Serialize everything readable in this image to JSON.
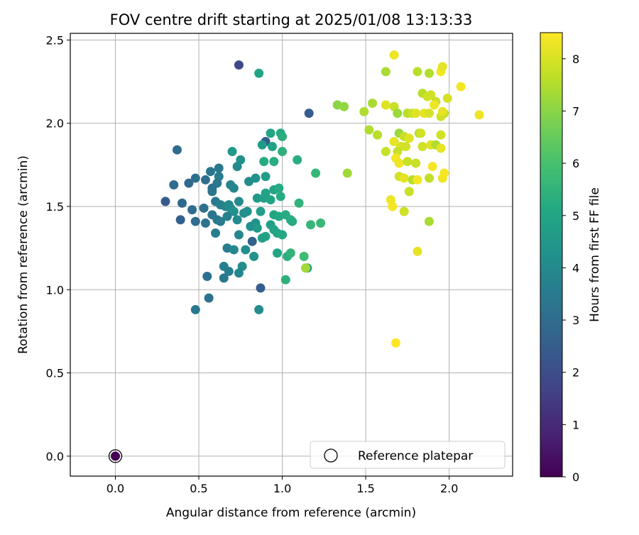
{
  "chart_data": {
    "type": "scatter",
    "title": "FOV centre drift starting at 2025/01/08 13:13:33",
    "xlabel": "Angular distance from reference (arcmin)",
    "ylabel": "Rotation from reference (arcmin)",
    "xlim": [
      -0.27,
      2.38
    ],
    "ylim": [
      -0.12,
      2.54
    ],
    "x_ticks": [
      0.0,
      0.5,
      1.0,
      1.5,
      2.0
    ],
    "x_tick_labels": [
      "0.0",
      "0.5",
      "1.0",
      "1.5",
      "2.0"
    ],
    "y_ticks": [
      0.0,
      0.5,
      1.0,
      1.5,
      2.0,
      2.5
    ],
    "y_tick_labels": [
      "0.0",
      "0.5",
      "1.0",
      "1.5",
      "2.0",
      "2.5"
    ],
    "grid": true,
    "legend": {
      "position": "lower-right",
      "entries": [
        "Reference platepar"
      ]
    },
    "colorbar": {
      "label": "Hours from first FF file",
      "min": 0,
      "max": 8.5,
      "colormap": "viridis",
      "ticks": [
        0,
        1,
        2,
        3,
        4,
        5,
        6,
        7,
        8
      ],
      "tick_labels": [
        "0",
        "1",
        "2",
        "3",
        "4",
        "5",
        "6",
        "7",
        "8"
      ]
    },
    "reference_point": {
      "name": "Reference platepar",
      "x": 0.0,
      "y": 0.0,
      "hours": 0.0
    },
    "series": [
      {
        "points": [
          [
            0.74,
            2.35,
            1.9
          ],
          [
            0.86,
            2.3,
            5.0
          ],
          [
            1.16,
            2.06,
            2.5
          ],
          [
            0.9,
            1.89,
            2.4
          ],
          [
            0.37,
            1.84,
            3.0
          ],
          [
            0.93,
            1.94,
            5.0
          ],
          [
            0.99,
            1.94,
            5.2
          ],
          [
            0.88,
            1.87,
            4.6
          ],
          [
            0.94,
            1.86,
            4.9
          ],
          [
            1.0,
            1.92,
            5.3
          ],
          [
            0.7,
            1.83,
            4.5
          ],
          [
            0.75,
            1.78,
            4.2
          ],
          [
            0.73,
            1.74,
            4.0
          ],
          [
            0.89,
            1.77,
            5.2
          ],
          [
            0.95,
            1.77,
            5.3
          ],
          [
            1.0,
            1.83,
            5.4
          ],
          [
            1.09,
            1.78,
            5.3
          ],
          [
            1.2,
            1.7,
            5.6
          ],
          [
            0.35,
            1.63,
            3.0
          ],
          [
            0.44,
            1.64,
            2.9
          ],
          [
            0.48,
            1.67,
            3.1
          ],
          [
            0.57,
            1.71,
            3.3
          ],
          [
            0.62,
            1.73,
            3.4
          ],
          [
            0.62,
            1.68,
            3.5
          ],
          [
            0.54,
            1.66,
            3.1
          ],
          [
            0.61,
            1.64,
            3.4
          ],
          [
            0.58,
            1.61,
            3.2
          ],
          [
            0.58,
            1.59,
            3.3
          ],
          [
            0.69,
            1.63,
            3.8
          ],
          [
            0.71,
            1.61,
            3.9
          ],
          [
            0.84,
            1.67,
            4.3
          ],
          [
            0.8,
            1.65,
            4.1
          ],
          [
            0.9,
            1.68,
            4.7
          ],
          [
            0.95,
            1.6,
            5.0
          ],
          [
            0.98,
            1.61,
            5.2
          ],
          [
            0.3,
            1.53,
            2.4
          ],
          [
            0.4,
            1.52,
            2.9
          ],
          [
            0.46,
            1.48,
            3.0
          ],
          [
            0.53,
            1.49,
            3.1
          ],
          [
            0.6,
            1.53,
            3.4
          ],
          [
            0.63,
            1.51,
            3.6
          ],
          [
            0.66,
            1.5,
            3.8
          ],
          [
            0.68,
            1.51,
            4.0
          ],
          [
            0.69,
            1.49,
            4.1
          ],
          [
            0.74,
            1.53,
            4.0
          ],
          [
            0.71,
            1.47,
            4.2
          ],
          [
            0.77,
            1.46,
            4.1
          ],
          [
            0.79,
            1.47,
            4.2
          ],
          [
            0.85,
            1.55,
            4.6
          ],
          [
            0.89,
            1.55,
            4.8
          ],
          [
            0.93,
            1.54,
            5.0
          ],
          [
            0.9,
            1.58,
            4.9
          ],
          [
            0.99,
            1.56,
            5.2
          ],
          [
            0.87,
            1.47,
            4.7
          ],
          [
            0.95,
            1.45,
            5.0
          ],
          [
            0.98,
            1.44,
            5.1
          ],
          [
            1.02,
            1.45,
            5.2
          ],
          [
            1.05,
            1.42,
            5.3
          ],
          [
            1.1,
            1.52,
            5.5
          ],
          [
            1.17,
            1.39,
            5.6
          ],
          [
            1.23,
            1.4,
            5.7
          ],
          [
            0.39,
            1.42,
            2.6
          ],
          [
            0.48,
            1.41,
            3.0
          ],
          [
            0.54,
            1.4,
            3.2
          ],
          [
            0.58,
            1.45,
            3.3
          ],
          [
            0.61,
            1.42,
            3.4
          ],
          [
            0.63,
            1.41,
            3.5
          ],
          [
            0.67,
            1.44,
            3.7
          ],
          [
            0.6,
            1.34,
            3.5
          ],
          [
            0.73,
            1.42,
            4.0
          ],
          [
            0.81,
            1.38,
            4.2
          ],
          [
            0.84,
            1.4,
            4.3
          ],
          [
            0.85,
            1.37,
            4.5
          ],
          [
            0.93,
            1.39,
            4.8
          ],
          [
            0.95,
            1.36,
            4.9
          ],
          [
            0.97,
            1.34,
            5.0
          ],
          [
            1.0,
            1.33,
            5.1
          ],
          [
            1.06,
            1.41,
            5.2
          ],
          [
            0.74,
            1.33,
            3.9
          ],
          [
            0.82,
            1.29,
            2.7
          ],
          [
            0.9,
            1.32,
            4.9
          ],
          [
            0.88,
            1.31,
            4.8
          ],
          [
            0.67,
            1.25,
            3.5
          ],
          [
            0.71,
            1.24,
            3.9
          ],
          [
            0.78,
            1.24,
            4.1
          ],
          [
            0.83,
            1.2,
            4.3
          ],
          [
            0.97,
            1.22,
            5.0
          ],
          [
            1.03,
            1.2,
            5.3
          ],
          [
            1.05,
            1.22,
            5.5
          ],
          [
            1.13,
            1.2,
            5.8
          ],
          [
            0.65,
            1.14,
            3.7
          ],
          [
            0.76,
            1.14,
            4.1
          ],
          [
            0.68,
            1.11,
            3.6
          ],
          [
            0.74,
            1.1,
            3.9
          ],
          [
            0.55,
            1.08,
            3.1
          ],
          [
            0.65,
            1.07,
            3.4
          ],
          [
            1.02,
            1.06,
            5.4
          ],
          [
            1.15,
            1.13,
            4.7
          ],
          [
            1.14,
            1.13,
            7.3
          ],
          [
            0.87,
            1.01,
            2.5
          ],
          [
            0.56,
            0.95,
            3.2
          ],
          [
            0.48,
            0.88,
            3.4
          ],
          [
            0.86,
            0.88,
            4.1
          ],
          [
            1.67,
            2.41,
            8.3
          ],
          [
            1.62,
            2.31,
            7.4
          ],
          [
            1.81,
            2.31,
            7.6
          ],
          [
            1.88,
            2.3,
            7.5
          ],
          [
            1.95,
            2.31,
            8.4
          ],
          [
            1.96,
            2.34,
            8.2
          ],
          [
            1.33,
            2.11,
            7.0
          ],
          [
            1.37,
            2.1,
            7.1
          ],
          [
            1.54,
            2.12,
            7.4
          ],
          [
            1.62,
            2.11,
            8.1
          ],
          [
            1.67,
            2.1,
            7.8
          ],
          [
            1.69,
            2.06,
            7.2
          ],
          [
            1.84,
            2.18,
            7.6
          ],
          [
            1.87,
            2.16,
            7.9
          ],
          [
            1.89,
            2.17,
            7.9
          ],
          [
            1.92,
            2.13,
            7.8
          ],
          [
            1.99,
            2.15,
            8.0
          ],
          [
            2.07,
            2.22,
            8.4
          ],
          [
            1.49,
            2.07,
            7.5
          ],
          [
            1.75,
            2.06,
            7.6
          ],
          [
            1.78,
            2.06,
            7.8
          ],
          [
            1.8,
            2.06,
            8.1
          ],
          [
            1.85,
            2.06,
            8.2
          ],
          [
            1.88,
            2.06,
            8.0
          ],
          [
            1.91,
            2.11,
            8.3
          ],
          [
            1.95,
            2.04,
            7.9
          ],
          [
            1.97,
            2.06,
            7.7
          ],
          [
            1.96,
            2.07,
            8.2
          ],
          [
            2.18,
            2.05,
            8.3
          ],
          [
            1.52,
            1.96,
            7.5
          ],
          [
            1.57,
            1.93,
            7.6
          ],
          [
            1.7,
            1.94,
            7.2
          ],
          [
            1.73,
            1.92,
            7.8
          ],
          [
            1.76,
            1.91,
            8.1
          ],
          [
            1.82,
            1.94,
            7.5
          ],
          [
            1.83,
            1.94,
            7.9
          ],
          [
            1.95,
            1.93,
            7.9
          ],
          [
            1.62,
            1.83,
            7.8
          ],
          [
            1.67,
            1.89,
            8.2
          ],
          [
            1.71,
            1.86,
            8.0
          ],
          [
            1.74,
            1.86,
            7.9
          ],
          [
            1.69,
            1.83,
            7.8
          ],
          [
            1.84,
            1.86,
            7.9
          ],
          [
            1.89,
            1.87,
            8.1
          ],
          [
            1.92,
            1.87,
            7.5
          ],
          [
            1.95,
            1.85,
            8.2
          ],
          [
            1.68,
            1.79,
            8.4
          ],
          [
            1.7,
            1.76,
            8.3
          ],
          [
            1.75,
            1.77,
            7.8
          ],
          [
            1.8,
            1.76,
            7.8
          ],
          [
            1.9,
            1.74,
            8.4
          ],
          [
            1.39,
            1.7,
            7.3
          ],
          [
            1.7,
            1.68,
            7.9
          ],
          [
            1.73,
            1.67,
            8.2
          ],
          [
            1.78,
            1.66,
            7.6
          ],
          [
            1.81,
            1.66,
            8.4
          ],
          [
            1.88,
            1.67,
            7.7
          ],
          [
            1.96,
            1.67,
            8.3
          ],
          [
            1.97,
            1.7,
            8.4
          ],
          [
            1.76,
            1.59,
            7.8
          ],
          [
            1.65,
            1.54,
            8.3
          ],
          [
            1.66,
            1.5,
            8.4
          ],
          [
            1.73,
            1.47,
            7.9
          ],
          [
            1.88,
            1.41,
            7.4
          ],
          [
            1.81,
            1.23,
            8.2
          ],
          [
            1.68,
            0.68,
            8.5
          ]
        ]
      }
    ]
  }
}
